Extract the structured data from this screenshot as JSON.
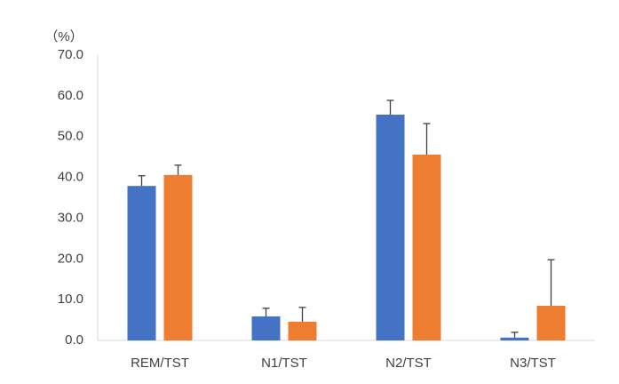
{
  "chart_data": {
    "type": "bar",
    "y_label": "（%）",
    "categories": [
      "REM/TST",
      "N1/TST",
      "N2/TST",
      "N3/TST"
    ],
    "series": [
      {
        "color": "#4472c4",
        "values": [
          37.9,
          5.9,
          55.4,
          0.7
        ],
        "errors": [
          2.5,
          2.0,
          3.5,
          1.3
        ]
      },
      {
        "color": "#ed7d31",
        "values": [
          40.6,
          4.6,
          45.6,
          8.5
        ],
        "errors": [
          2.4,
          3.5,
          7.6,
          11.3
        ]
      }
    ],
    "ylim": [
      0,
      70
    ],
    "yticks": [
      {
        "value": 0,
        "label": "0.0"
      },
      {
        "value": 10,
        "label": "10.0"
      },
      {
        "value": 20,
        "label": "20.0"
      },
      {
        "value": 30,
        "label": "30.0"
      },
      {
        "value": 40,
        "label": "40.0"
      },
      {
        "value": 50,
        "label": "50.0"
      },
      {
        "value": 60,
        "label": "60.0"
      },
      {
        "value": 70,
        "label": "70.0"
      }
    ],
    "grid": false
  }
}
